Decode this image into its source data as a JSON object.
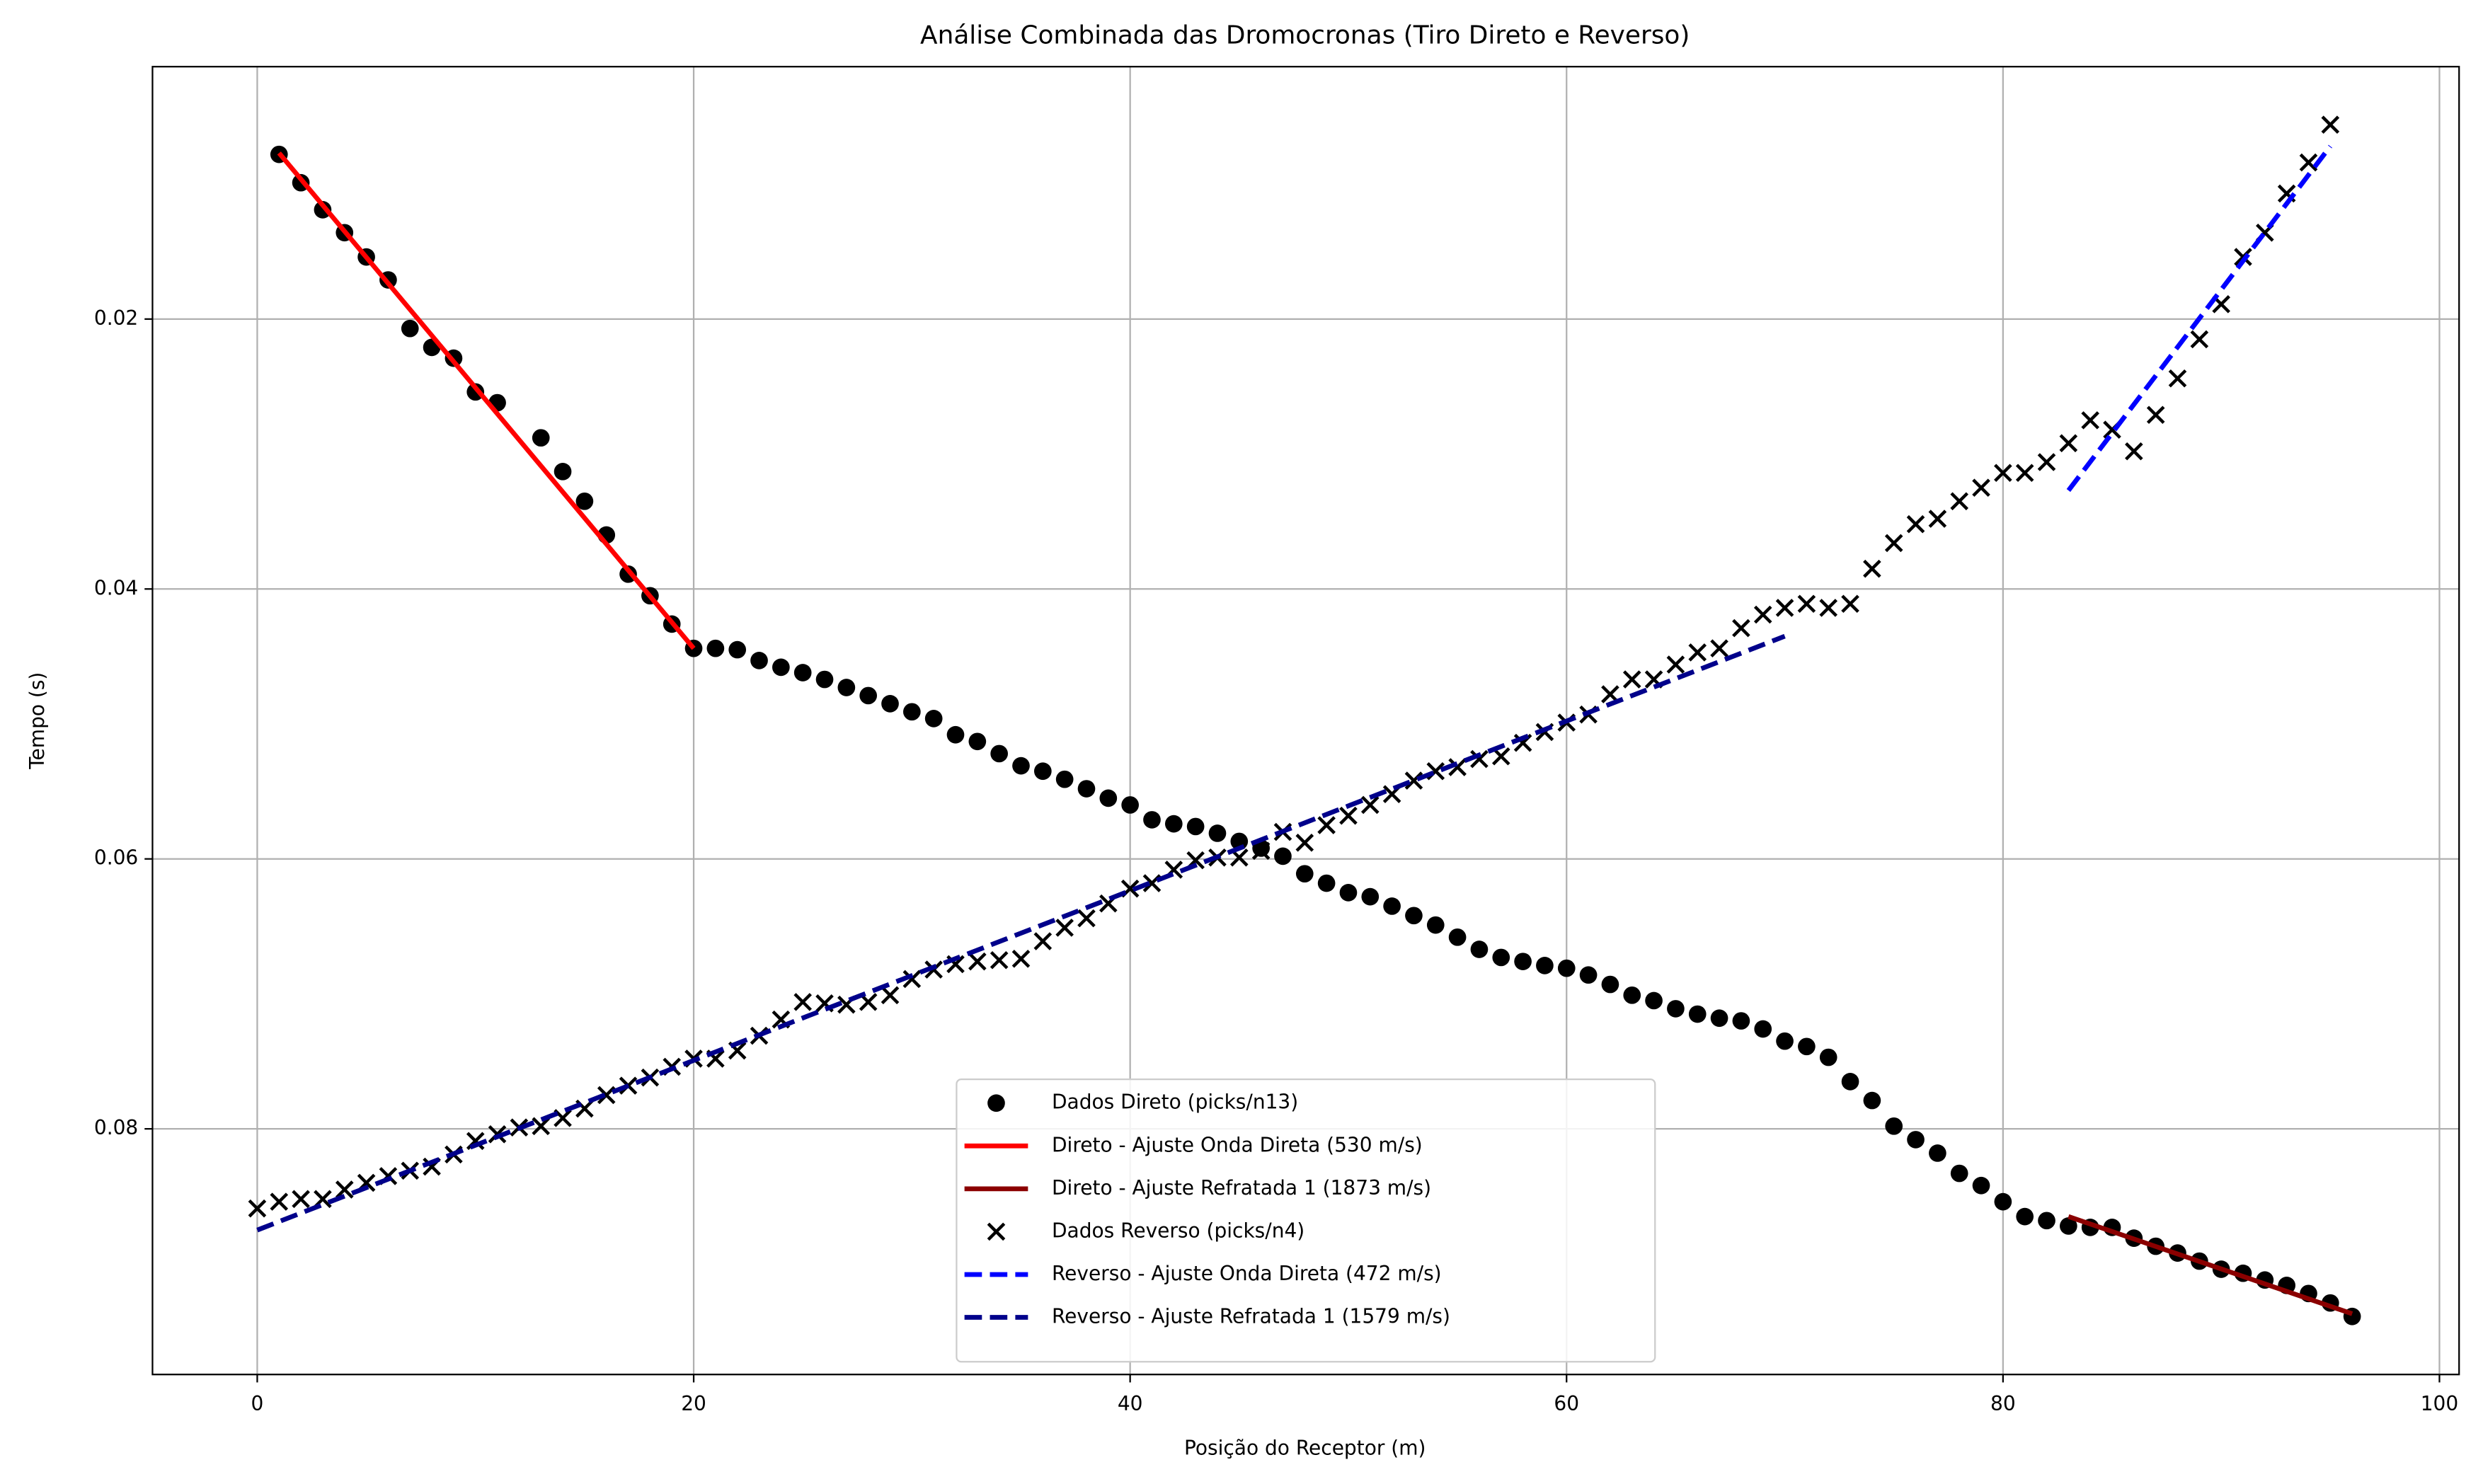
{
  "chart_data": {
    "type": "scatter",
    "title": "Análise Combinada das Dromocronas (Tiro Direto e Reverso)",
    "xlabel": "Posição do Receptor (m)",
    "ylabel": "Tempo (s)",
    "xlim": [
      -4.8,
      100.9
    ],
    "ylim": [
      0.0013,
      0.0982
    ],
    "y_inverted": true,
    "xticks": [
      0,
      20,
      40,
      60,
      80,
      100
    ],
    "yticks": [
      0.02,
      0.04,
      0.06,
      0.08
    ],
    "grid": true,
    "legend": "lower center",
    "series": [
      {
        "name": "Dados Direto (picks/n13)",
        "mode": "scatter",
        "marker": "o",
        "color": "#000000",
        "x": [
          1,
          2,
          3,
          4,
          5,
          6,
          7,
          8,
          9,
          10,
          11,
          13,
          14,
          15,
          16,
          17,
          18,
          19,
          20,
          21,
          22,
          23,
          24,
          25,
          26,
          27,
          28,
          29,
          30,
          31,
          32,
          33,
          34,
          35,
          36,
          37,
          38,
          39,
          40,
          41,
          42,
          43,
          44,
          45,
          46,
          47,
          48,
          49,
          50,
          51,
          52,
          53,
          54,
          55,
          56,
          57,
          58,
          59,
          60,
          61,
          62,
          63,
          64,
          65,
          66,
          67,
          68,
          69,
          70,
          71,
          72,
          73,
          74,
          75,
          76,
          77,
          78,
          79,
          80,
          81,
          82,
          83,
          84,
          85,
          86,
          87,
          88,
          89,
          90,
          91,
          92,
          93,
          94,
          95,
          96
        ],
        "values": [
          0.0078,
          0.0099,
          0.0119,
          0.0136,
          0.0154,
          0.0171,
          0.0207,
          0.0221,
          0.0229,
          0.0254,
          0.0262,
          0.0288,
          0.0313,
          0.0335,
          0.036,
          0.0389,
          0.0405,
          0.0426,
          0.0444,
          0.0444,
          0.0445,
          0.0453,
          0.0458,
          0.0462,
          0.0467,
          0.0473,
          0.0479,
          0.0485,
          0.0491,
          0.0496,
          0.0508,
          0.0513,
          0.0522,
          0.0531,
          0.0535,
          0.0541,
          0.0548,
          0.0555,
          0.056,
          0.0571,
          0.0574,
          0.0576,
          0.0581,
          0.0587,
          0.0592,
          0.0598,
          0.0611,
          0.0618,
          0.0625,
          0.0628,
          0.0635,
          0.0642,
          0.0649,
          0.0658,
          0.0667,
          0.0673,
          0.0676,
          0.0679,
          0.0681,
          0.0686,
          0.0693,
          0.0701,
          0.0705,
          0.0711,
          0.0715,
          0.0718,
          0.072,
          0.0726,
          0.0735,
          0.0739,
          0.0747,
          0.0765,
          0.0779,
          0.0798,
          0.0808,
          0.0818,
          0.0833,
          0.0842,
          0.0854,
          0.0865,
          0.0868,
          0.0872,
          0.0873,
          0.0873,
          0.0881,
          0.0887,
          0.0892,
          0.0898,
          0.0904,
          0.0907,
          0.0912,
          0.0916,
          0.0922,
          0.0929,
          0.0939
        ]
      },
      {
        "name": "Direto - Ajuste Onda Direta (530 m/s)",
        "mode": "line",
        "dash": false,
        "color": "#ff0000",
        "x": [
          1,
          20
        ],
        "values": [
          0.0077,
          0.0444
        ]
      },
      {
        "name": "Direto - Ajuste Refratada 1 (1873 m/s)",
        "mode": "line",
        "dash": false,
        "color": "#8b0000",
        "x": [
          83,
          96
        ],
        "values": [
          0.0865,
          0.0937
        ]
      },
      {
        "name": "Dados Reverso (picks/n4)",
        "mode": "scatter",
        "marker": "x",
        "color": "#000000",
        "x": [
          0,
          1,
          2,
          3,
          4,
          5,
          6,
          7,
          8,
          9,
          10,
          11,
          12,
          13,
          14,
          15,
          16,
          17,
          18,
          19,
          20,
          21,
          22,
          23,
          24,
          25,
          26,
          27,
          28,
          29,
          30,
          31,
          32,
          33,
          34,
          35,
          36,
          37,
          38,
          39,
          40,
          41,
          42,
          43,
          44,
          45,
          46,
          47,
          48,
          49,
          50,
          51,
          52,
          53,
          54,
          55,
          56,
          57,
          58,
          59,
          60,
          61,
          62,
          63,
          64,
          65,
          66,
          67,
          68,
          69,
          70,
          71,
          72,
          73,
          74,
          75,
          76,
          77,
          78,
          79,
          80,
          81,
          82,
          83,
          84,
          85,
          86,
          87,
          88,
          89,
          90,
          91,
          92,
          93,
          94,
          95
        ],
        "values": [
          0.0859,
          0.0854,
          0.0852,
          0.0852,
          0.0845,
          0.084,
          0.0835,
          0.0831,
          0.0828,
          0.0819,
          0.0809,
          0.0804,
          0.0799,
          0.0798,
          0.0792,
          0.0785,
          0.0775,
          0.0768,
          0.0762,
          0.0754,
          0.0748,
          0.0748,
          0.0742,
          0.0731,
          0.0719,
          0.0706,
          0.0707,
          0.0708,
          0.0706,
          0.0701,
          0.0689,
          0.0682,
          0.0678,
          0.0676,
          0.0675,
          0.0674,
          0.0661,
          0.0651,
          0.0644,
          0.0633,
          0.0622,
          0.0618,
          0.0608,
          0.0601,
          0.0599,
          0.0599,
          0.0594,
          0.058,
          0.0588,
          0.0575,
          0.0568,
          0.056,
          0.0552,
          0.0542,
          0.0535,
          0.0532,
          0.0526,
          0.0524,
          0.0514,
          0.0506,
          0.0499,
          0.0493,
          0.0478,
          0.0467,
          0.0467,
          0.0456,
          0.0447,
          0.0444,
          0.0429,
          0.0419,
          0.0414,
          0.0411,
          0.0414,
          0.0411,
          0.0385,
          0.0366,
          0.0352,
          0.0348,
          0.0335,
          0.0325,
          0.0314,
          0.0314,
          0.0306,
          0.0292,
          0.0275,
          0.0282,
          0.0298,
          0.0271,
          0.0244,
          0.0215,
          0.0189,
          0.0154,
          0.0136,
          0.0107,
          0.0084,
          0.0056
        ]
      },
      {
        "name": "Reverso - Ajuste Onda Direta (472 m/s)",
        "mode": "line",
        "dash": true,
        "color": "#0000ff",
        "x": [
          83,
          95
        ],
        "values": [
          0.0327,
          0.0072
        ]
      },
      {
        "name": "Reverso - Ajuste Refratada 1 (1579 m/s)",
        "mode": "line",
        "dash": true,
        "color": "#00008b",
        "x": [
          0,
          70
        ],
        "values": [
          0.0875,
          0.0435
        ]
      }
    ]
  }
}
